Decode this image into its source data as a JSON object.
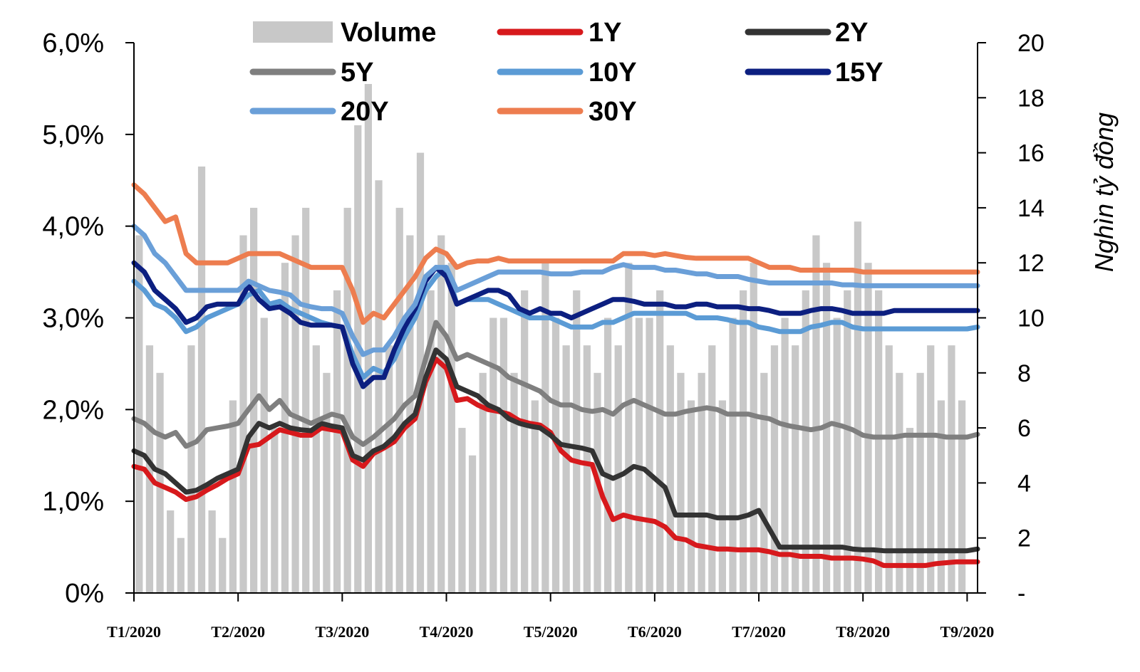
{
  "chart_data": {
    "type": "line",
    "xlabel": "",
    "ylabel": "",
    "y2label": "Nghìn  tỷ đồng",
    "x_ticks": [
      "T1/2020",
      "T2/2020",
      "T3/2020",
      "T4/2020",
      "T5/2020",
      "T6/2020",
      "T7/2020",
      "T8/2020",
      "T9/2020"
    ],
    "x_range": [
      0,
      8.1
    ],
    "y_ticks": [
      "0%",
      "1,0%",
      "2,0%",
      "3,0%",
      "4,0%",
      "5,0%",
      "6,0%"
    ],
    "ylim": [
      0,
      6
    ],
    "y2_ticks": [
      "-",
      "2",
      "4",
      "6",
      "8",
      "10",
      "12",
      "14",
      "16",
      "18",
      "20"
    ],
    "y2lim": [
      0,
      20
    ],
    "grid": false,
    "legend_position": "top",
    "volume": {
      "name": "Volume",
      "color": "#c8c8c8",
      "x": [
        0.05,
        0.15,
        0.25,
        0.35,
        0.45,
        0.55,
        0.65,
        0.75,
        0.85,
        0.95,
        1.05,
        1.15,
        1.25,
        1.35,
        1.45,
        1.55,
        1.65,
        1.75,
        1.85,
        1.95,
        2.05,
        2.15,
        2.25,
        2.35,
        2.45,
        2.55,
        2.65,
        2.75,
        2.85,
        2.95,
        3.05,
        3.15,
        3.25,
        3.35,
        3.45,
        3.55,
        3.65,
        3.75,
        3.85,
        3.95,
        4.05,
        4.15,
        4.25,
        4.35,
        4.45,
        4.55,
        4.65,
        4.75,
        4.85,
        4.95,
        5.05,
        5.15,
        5.25,
        5.35,
        5.45,
        5.55,
        5.65,
        5.75,
        5.85,
        5.95,
        6.05,
        6.15,
        6.25,
        6.35,
        6.45,
        6.55,
        6.65,
        6.75,
        6.85,
        6.95,
        7.05,
        7.15,
        7.25,
        7.35,
        7.45,
        7.55,
        7.65,
        7.75,
        7.85,
        7.95
      ],
      "values": [
        13,
        9,
        8,
        3,
        2,
        9,
        15.5,
        3,
        2,
        7,
        13,
        14,
        10,
        6,
        12,
        13,
        14,
        9,
        8,
        11,
        14,
        17,
        18.5,
        15,
        9,
        14,
        13,
        16,
        11,
        13,
        12,
        6,
        5,
        8,
        10,
        10,
        8,
        11,
        7,
        12,
        10,
        9,
        11,
        9,
        8,
        10,
        9,
        12,
        10,
        10,
        11,
        9,
        8,
        7,
        8,
        9,
        7,
        10,
        11,
        12,
        8,
        9,
        10,
        9,
        11,
        13,
        12,
        10,
        11,
        13.5,
        12,
        11,
        9,
        8,
        6,
        8,
        9,
        7,
        9,
        7
      ]
    },
    "x": [
      0,
      0.1,
      0.2,
      0.3,
      0.4,
      0.5,
      0.6,
      0.7,
      0.8,
      0.9,
      1.0,
      1.1,
      1.2,
      1.3,
      1.4,
      1.5,
      1.6,
      1.7,
      1.8,
      1.9,
      2.0,
      2.1,
      2.2,
      2.3,
      2.4,
      2.5,
      2.6,
      2.7,
      2.8,
      2.9,
      3.0,
      3.1,
      3.2,
      3.3,
      3.4,
      3.5,
      3.6,
      3.7,
      3.8,
      3.9,
      4.0,
      4.1,
      4.2,
      4.3,
      4.4,
      4.5,
      4.6,
      4.7,
      4.8,
      4.9,
      5.0,
      5.1,
      5.2,
      5.3,
      5.4,
      5.5,
      5.6,
      5.7,
      5.8,
      5.9,
      6.0,
      6.1,
      6.2,
      6.3,
      6.4,
      6.5,
      6.6,
      6.7,
      6.8,
      6.9,
      7.0,
      7.1,
      7.2,
      7.3,
      7.4,
      7.5,
      7.6,
      7.7,
      7.8,
      7.9,
      8.0,
      8.1
    ],
    "series": [
      {
        "name": "1Y",
        "color": "#d7191c",
        "values": [
          1.38,
          1.35,
          1.2,
          1.15,
          1.1,
          1.02,
          1.05,
          1.12,
          1.18,
          1.25,
          1.3,
          1.6,
          1.62,
          1.7,
          1.78,
          1.75,
          1.72,
          1.72,
          1.8,
          1.78,
          1.76,
          1.45,
          1.38,
          1.52,
          1.58,
          1.65,
          1.8,
          1.9,
          2.3,
          2.55,
          2.45,
          2.1,
          2.12,
          2.05,
          2.0,
          1.98,
          1.95,
          1.88,
          1.85,
          1.83,
          1.75,
          1.55,
          1.45,
          1.42,
          1.4,
          1.05,
          0.8,
          0.85,
          0.82,
          0.8,
          0.78,
          0.72,
          0.6,
          0.58,
          0.52,
          0.5,
          0.48,
          0.48,
          0.47,
          0.47,
          0.47,
          0.45,
          0.42,
          0.42,
          0.4,
          0.4,
          0.4,
          0.38,
          0.38,
          0.38,
          0.37,
          0.35,
          0.3,
          0.3,
          0.3,
          0.3,
          0.3,
          0.32,
          0.33,
          0.34,
          0.34,
          0.34
        ]
      },
      {
        "name": "2Y",
        "color": "#333333",
        "values": [
          1.55,
          1.5,
          1.35,
          1.3,
          1.2,
          1.1,
          1.12,
          1.18,
          1.25,
          1.3,
          1.35,
          1.7,
          1.85,
          1.8,
          1.85,
          1.8,
          1.78,
          1.77,
          1.85,
          1.82,
          1.8,
          1.5,
          1.45,
          1.55,
          1.6,
          1.7,
          1.85,
          1.95,
          2.35,
          2.65,
          2.55,
          2.25,
          2.2,
          2.15,
          2.05,
          2.0,
          1.9,
          1.85,
          1.82,
          1.8,
          1.72,
          1.62,
          1.6,
          1.58,
          1.55,
          1.3,
          1.25,
          1.3,
          1.38,
          1.35,
          1.25,
          1.15,
          0.85,
          0.85,
          0.85,
          0.85,
          0.82,
          0.82,
          0.82,
          0.85,
          0.9,
          0.7,
          0.5,
          0.5,
          0.5,
          0.5,
          0.5,
          0.5,
          0.5,
          0.48,
          0.47,
          0.47,
          0.46,
          0.46,
          0.46,
          0.46,
          0.46,
          0.46,
          0.46,
          0.46,
          0.46,
          0.48
        ]
      },
      {
        "name": "5Y",
        "color": "#7f7f7f",
        "values": [
          1.9,
          1.85,
          1.75,
          1.7,
          1.75,
          1.6,
          1.65,
          1.78,
          1.8,
          1.82,
          1.85,
          2.0,
          2.15,
          2.0,
          2.1,
          1.95,
          1.9,
          1.85,
          1.9,
          1.95,
          1.92,
          1.7,
          1.62,
          1.7,
          1.8,
          1.9,
          2.05,
          2.15,
          2.55,
          2.95,
          2.8,
          2.55,
          2.6,
          2.55,
          2.5,
          2.45,
          2.35,
          2.3,
          2.25,
          2.2,
          2.1,
          2.05,
          2.05,
          2.0,
          1.98,
          2.0,
          1.95,
          2.05,
          2.1,
          2.05,
          2.0,
          1.95,
          1.95,
          1.98,
          2.0,
          2.02,
          2.0,
          1.95,
          1.95,
          1.95,
          1.92,
          1.9,
          1.85,
          1.82,
          1.8,
          1.78,
          1.8,
          1.85,
          1.82,
          1.78,
          1.72,
          1.7,
          1.7,
          1.7,
          1.72,
          1.72,
          1.72,
          1.72,
          1.7,
          1.7,
          1.7,
          1.73
        ]
      },
      {
        "name": "10Y",
        "color": "#5b9bd5",
        "values": [
          3.4,
          3.3,
          3.15,
          3.1,
          3.0,
          2.85,
          2.9,
          3.0,
          3.05,
          3.1,
          3.15,
          3.25,
          3.3,
          3.15,
          3.18,
          3.1,
          3.05,
          3.0,
          2.95,
          2.92,
          2.9,
          2.6,
          2.35,
          2.45,
          2.4,
          2.55,
          2.8,
          3.0,
          3.3,
          3.45,
          3.55,
          3.15,
          3.2,
          3.2,
          3.2,
          3.15,
          3.1,
          3.05,
          3.0,
          3.0,
          3.0,
          2.95,
          2.9,
          2.9,
          2.9,
          2.95,
          2.95,
          3.0,
          3.05,
          3.05,
          3.05,
          3.05,
          3.05,
          3.05,
          3.0,
          3.0,
          3.0,
          2.98,
          2.95,
          2.95,
          2.9,
          2.88,
          2.85,
          2.85,
          2.85,
          2.9,
          2.92,
          2.95,
          2.95,
          2.9,
          2.88,
          2.88,
          2.88,
          2.88,
          2.88,
          2.88,
          2.88,
          2.88,
          2.88,
          2.88,
          2.88,
          2.9
        ]
      },
      {
        "name": "15Y",
        "color": "#0c1f80",
        "values": [
          3.6,
          3.5,
          3.3,
          3.2,
          3.1,
          2.95,
          3.0,
          3.12,
          3.15,
          3.15,
          3.15,
          3.35,
          3.2,
          3.1,
          3.12,
          3.05,
          2.95,
          2.92,
          2.92,
          2.92,
          2.9,
          2.5,
          2.25,
          2.35,
          2.35,
          2.65,
          2.9,
          3.1,
          3.4,
          3.55,
          3.45,
          3.15,
          3.2,
          3.25,
          3.3,
          3.3,
          3.25,
          3.1,
          3.05,
          3.1,
          3.05,
          3.05,
          3.0,
          3.05,
          3.1,
          3.15,
          3.2,
          3.2,
          3.18,
          3.15,
          3.15,
          3.15,
          3.12,
          3.12,
          3.15,
          3.15,
          3.12,
          3.12,
          3.12,
          3.1,
          3.1,
          3.08,
          3.05,
          3.05,
          3.05,
          3.08,
          3.1,
          3.1,
          3.08,
          3.05,
          3.05,
          3.05,
          3.05,
          3.08,
          3.08,
          3.08,
          3.08,
          3.08,
          3.08,
          3.08,
          3.08,
          3.08
        ]
      },
      {
        "name": "20Y",
        "color": "#6a9fd8",
        "values": [
          4.0,
          3.9,
          3.7,
          3.6,
          3.45,
          3.3,
          3.3,
          3.3,
          3.3,
          3.3,
          3.3,
          3.4,
          3.35,
          3.3,
          3.28,
          3.25,
          3.15,
          3.12,
          3.1,
          3.1,
          3.05,
          2.8,
          2.6,
          2.65,
          2.65,
          2.8,
          3.0,
          3.15,
          3.45,
          3.55,
          3.55,
          3.3,
          3.35,
          3.4,
          3.45,
          3.5,
          3.5,
          3.5,
          3.5,
          3.5,
          3.48,
          3.48,
          3.48,
          3.5,
          3.5,
          3.5,
          3.55,
          3.58,
          3.55,
          3.55,
          3.55,
          3.52,
          3.52,
          3.5,
          3.48,
          3.48,
          3.45,
          3.45,
          3.45,
          3.42,
          3.4,
          3.38,
          3.38,
          3.38,
          3.38,
          3.38,
          3.38,
          3.38,
          3.36,
          3.36,
          3.35,
          3.35,
          3.35,
          3.35,
          3.35,
          3.35,
          3.35,
          3.35,
          3.35,
          3.35,
          3.35,
          3.35
        ]
      },
      {
        "name": "30Y",
        "color": "#ed7d4f",
        "values": [
          4.45,
          4.35,
          4.2,
          4.05,
          4.1,
          3.7,
          3.6,
          3.6,
          3.6,
          3.6,
          3.65,
          3.7,
          3.7,
          3.7,
          3.7,
          3.65,
          3.6,
          3.55,
          3.55,
          3.55,
          3.55,
          3.3,
          2.95,
          3.05,
          3.0,
          3.15,
          3.3,
          3.45,
          3.65,
          3.75,
          3.7,
          3.55,
          3.6,
          3.62,
          3.62,
          3.65,
          3.62,
          3.62,
          3.62,
          3.62,
          3.62,
          3.62,
          3.62,
          3.62,
          3.62,
          3.62,
          3.62,
          3.7,
          3.7,
          3.7,
          3.68,
          3.7,
          3.68,
          3.66,
          3.65,
          3.65,
          3.65,
          3.65,
          3.65,
          3.65,
          3.6,
          3.55,
          3.55,
          3.55,
          3.52,
          3.52,
          3.52,
          3.52,
          3.52,
          3.52,
          3.5,
          3.5,
          3.5,
          3.5,
          3.5,
          3.5,
          3.5,
          3.5,
          3.5,
          3.5,
          3.5,
          3.5
        ]
      }
    ]
  }
}
